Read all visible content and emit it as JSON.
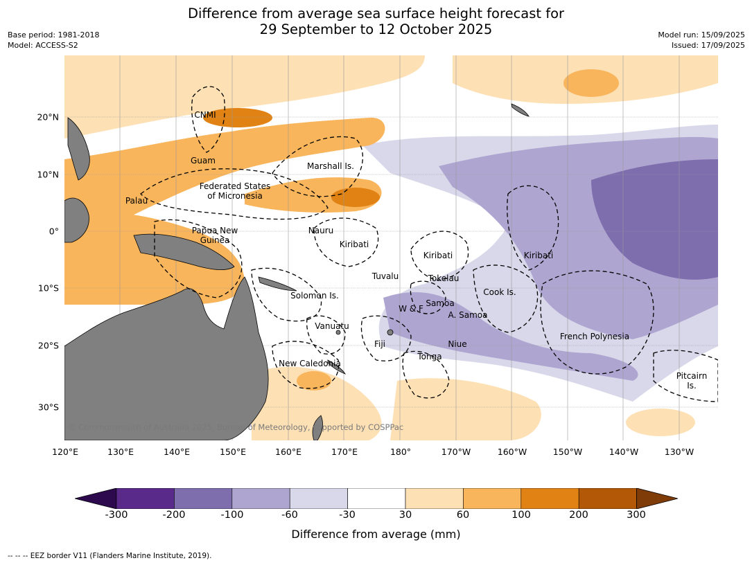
{
  "title_line1": "Difference from average sea surface height forecast for",
  "title_line2": "29 September to 12 October 2025",
  "meta_left": {
    "base_period": "Base period: 1981-2018",
    "model": "Model: ACCESS-S2"
  },
  "meta_right": {
    "model_run": "Model run: 15/09/2025",
    "issued": "Issued: 17/09/2025"
  },
  "lon_labels": [
    "120°E",
    "130°E",
    "140°E",
    "150°E",
    "160°E",
    "170°E",
    "180°",
    "170°W",
    "160°W",
    "150°W",
    "140°W",
    "130°W"
  ],
  "lat_labels": [
    "20°N",
    "10°N",
    "0°",
    "10°S",
    "20°S",
    "30°S"
  ],
  "regions": [
    "CNMI",
    "Guam",
    "Marshall Is.",
    "Federated States",
    "of Micronesia",
    "Palau",
    "Papua New",
    "Guinea",
    "Nauru",
    "Kiribati",
    "Kiribati",
    "Kiribati",
    "Tuvalu",
    "Tokelau",
    "Solomon Is.",
    "W & F",
    "Samoa",
    "A. Samoa",
    "Cook Is.",
    "Vanuatu",
    "Fiji",
    "Niue",
    "Tonga",
    "French Polynesia",
    "New Caledonia",
    "Pitcairn",
    "Is."
  ],
  "copyright": "© Commonwealth of Australia 2025, Bureau of Meteorology, supported by COSPPac",
  "colorbar": {
    "ticks": [
      "-300",
      "-200",
      "-100",
      "-60",
      "-30",
      "30",
      "60",
      "100",
      "200",
      "300"
    ],
    "colors": [
      "#2d0a4e",
      "#5a2a8a",
      "#7f6eae",
      "#aea6d0",
      "#d8d8ea",
      "#ffffff",
      "#fde0b4",
      "#f9b55c",
      "#e08214",
      "#b35806",
      "#7f3b08"
    ],
    "label": "Difference from average (mm)"
  },
  "footnote": "-- -- -- EEZ border V11 (Flanders Marine Institute, 2019).",
  "map_colors": {
    "land": "#808080",
    "ocean": "#ffffff",
    "eez_line": "#000000",
    "grid": "#999999"
  }
}
